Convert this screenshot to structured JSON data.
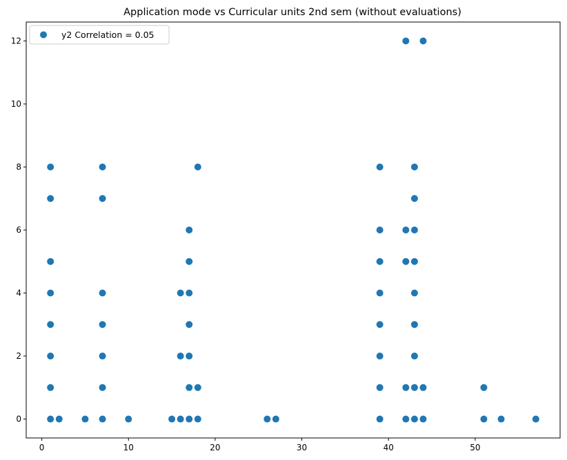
{
  "chart_data": {
    "type": "scatter",
    "title": "Application mode vs Curricular units 2nd sem (without evaluations)",
    "xlabel": "",
    "ylabel": "",
    "xlim": [
      -1.8,
      59.8
    ],
    "ylim": [
      -0.6,
      12.6
    ],
    "xticks": [
      0,
      10,
      20,
      30,
      40,
      50
    ],
    "yticks": [
      0,
      2,
      4,
      6,
      8,
      10,
      12
    ],
    "grid": false,
    "legend_position": "top-left",
    "marker_color": "#1f77b4",
    "series": [
      {
        "name": "y2 Correlation = 0.05",
        "points": [
          [
            1,
            0
          ],
          [
            1,
            1
          ],
          [
            1,
            2
          ],
          [
            1,
            3
          ],
          [
            1,
            4
          ],
          [
            1,
            5
          ],
          [
            1,
            7
          ],
          [
            1,
            8
          ],
          [
            2,
            0
          ],
          [
            5,
            0
          ],
          [
            7,
            0
          ],
          [
            7,
            1
          ],
          [
            7,
            2
          ],
          [
            7,
            3
          ],
          [
            7,
            4
          ],
          [
            7,
            7
          ],
          [
            7,
            8
          ],
          [
            10,
            0
          ],
          [
            15,
            0
          ],
          [
            16,
            0
          ],
          [
            16,
            2
          ],
          [
            16,
            4
          ],
          [
            17,
            0
          ],
          [
            17,
            1
          ],
          [
            17,
            2
          ],
          [
            17,
            3
          ],
          [
            17,
            4
          ],
          [
            17,
            5
          ],
          [
            17,
            6
          ],
          [
            18,
            0
          ],
          [
            18,
            1
          ],
          [
            18,
            8
          ],
          [
            26,
            0
          ],
          [
            27,
            0
          ],
          [
            39,
            0
          ],
          [
            39,
            1
          ],
          [
            39,
            2
          ],
          [
            39,
            3
          ],
          [
            39,
            4
          ],
          [
            39,
            5
          ],
          [
            39,
            6
          ],
          [
            39,
            8
          ],
          [
            42,
            0
          ],
          [
            42,
            1
          ],
          [
            42,
            5
          ],
          [
            42,
            6
          ],
          [
            42,
            12
          ],
          [
            43,
            0
          ],
          [
            43,
            1
          ],
          [
            43,
            2
          ],
          [
            43,
            3
          ],
          [
            43,
            4
          ],
          [
            43,
            5
          ],
          [
            43,
            6
          ],
          [
            43,
            7
          ],
          [
            43,
            8
          ],
          [
            44,
            0
          ],
          [
            44,
            1
          ],
          [
            44,
            12
          ],
          [
            51,
            0
          ],
          [
            51,
            1
          ],
          [
            53,
            0
          ],
          [
            57,
            0
          ]
        ]
      }
    ]
  }
}
